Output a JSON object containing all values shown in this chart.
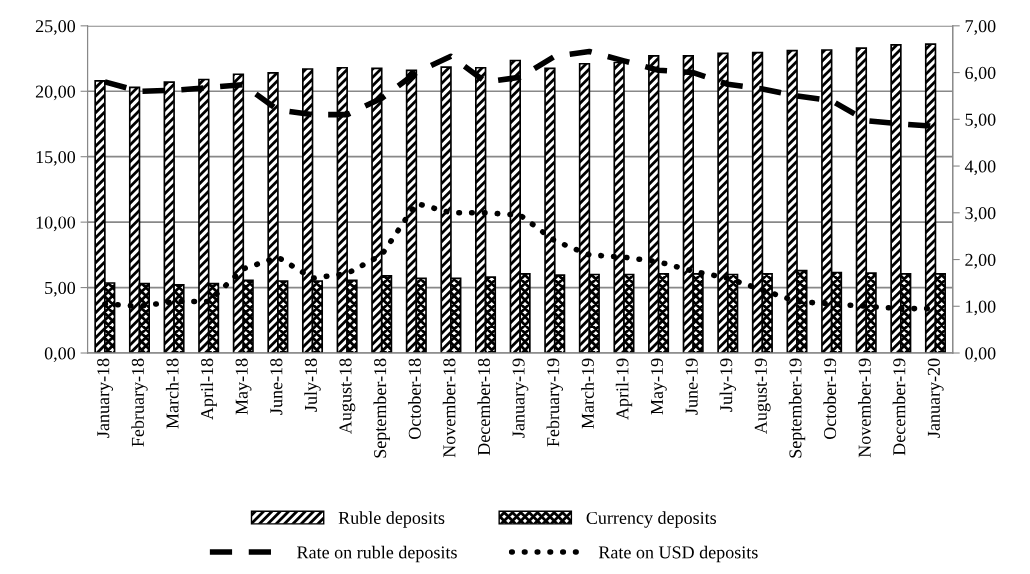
{
  "chart_data": {
    "type": "bar",
    "categories": [
      "January-18",
      "February-18",
      "March-18",
      "April-18",
      "May-18",
      "June-18",
      "July-18",
      "August-18",
      "September-18",
      "October-18",
      "November-18",
      "December-18",
      "January-19",
      "February-19",
      "March-19",
      "April-19",
      "May-19",
      "June-19",
      "July-19",
      "August-19",
      "September-19",
      "October-19",
      "November-19",
      "December-19",
      "January-20"
    ],
    "series": [
      {
        "name": "Ruble deposits",
        "color": "#000000",
        "values": [
          20.8,
          20.3,
          20.7,
          20.9,
          21.3,
          21.4,
          21.7,
          21.8,
          21.75,
          21.6,
          21.85,
          21.8,
          22.35,
          21.75,
          22.1,
          22.2,
          22.7,
          22.7,
          22.9,
          22.95,
          23.1,
          23.15,
          23.3,
          23.55,
          23.6
        ]
      },
      {
        "name": "Currency deposits",
        "color": "#000000",
        "values": [
          5.35,
          5.3,
          5.2,
          5.3,
          5.55,
          5.5,
          5.5,
          5.55,
          5.9,
          5.7,
          5.7,
          5.8,
          6.05,
          5.95,
          6.0,
          6.0,
          6.05,
          6.05,
          6.0,
          6.05,
          6.3,
          6.15,
          6.1,
          6.05,
          6.05
        ]
      },
      {
        "name": "Rate on ruble deposits",
        "type": "line",
        "axis": "y2",
        "color": "#000000",
        "line_style": "dashed",
        "values": [
          5.8,
          5.6,
          5.62,
          5.68,
          5.74,
          5.2,
          5.1,
          5.1,
          5.45,
          6.0,
          6.35,
          5.8,
          5.9,
          6.35,
          6.45,
          6.25,
          6.05,
          6.0,
          5.75,
          5.65,
          5.5,
          5.4,
          4.97,
          4.9,
          4.85
        ]
      },
      {
        "name": "Rate on USD deposits",
        "type": "line",
        "axis": "y2",
        "color": "#000000",
        "line_style": "dotted",
        "values": [
          1.05,
          1.0,
          1.1,
          1.1,
          1.8,
          2.05,
          1.6,
          1.7,
          2.1,
          3.2,
          3.0,
          3.0,
          2.95,
          2.4,
          2.1,
          2.05,
          1.95,
          1.75,
          1.6,
          1.35,
          1.1,
          1.05,
          1.0,
          0.95,
          0.95
        ]
      }
    ],
    "ylim": [
      0,
      25
    ],
    "yticks": [
      {
        "value": 0,
        "label": "0,00"
      },
      {
        "value": 5,
        "label": "5,00"
      },
      {
        "value": 10,
        "label": "10,00"
      },
      {
        "value": 15,
        "label": "15,00"
      },
      {
        "value": 20,
        "label": "20,00"
      },
      {
        "value": 25,
        "label": "25,00"
      }
    ],
    "y2lim": [
      0,
      7
    ],
    "y2ticks": [
      {
        "value": 0,
        "label": "0,00"
      },
      {
        "value": 1,
        "label": "1,00"
      },
      {
        "value": 2,
        "label": "2,00"
      },
      {
        "value": 3,
        "label": "3,00"
      },
      {
        "value": 4,
        "label": "4,00"
      },
      {
        "value": 5,
        "label": "5,00"
      },
      {
        "value": 6,
        "label": "6,00"
      },
      {
        "value": 7,
        "label": "7,00"
      }
    ],
    "grid": "y",
    "legend": "bottom"
  }
}
